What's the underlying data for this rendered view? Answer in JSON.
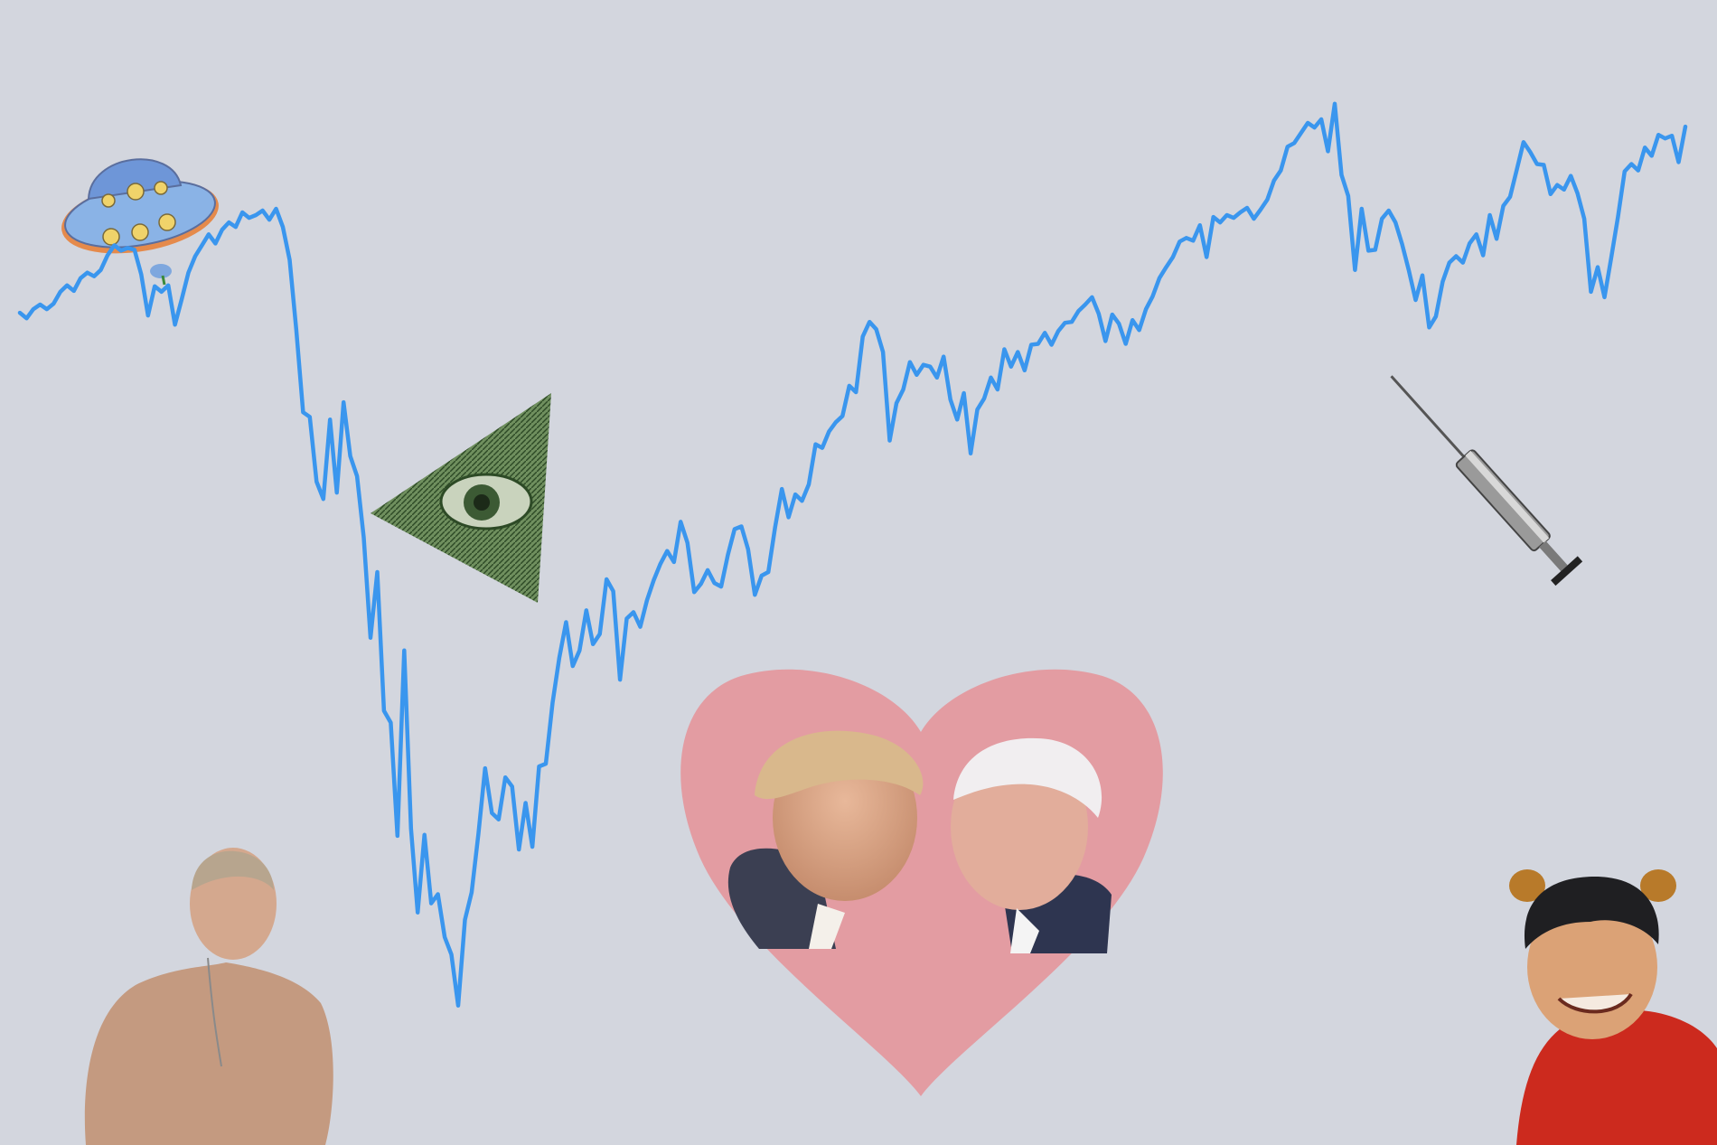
{
  "chart_data": {
    "type": "line",
    "title": "",
    "xlabel": "",
    "ylabel": "",
    "axes_shown": false,
    "grid": false,
    "legend": "none",
    "ylim": [
      0,
      100
    ],
    "series": [
      {
        "color": "#3a96ee",
        "values": [
          78.8,
          78.2,
          79.2,
          79.7,
          79.2,
          79.8,
          81.1,
          81.8,
          81.2,
          82.6,
          83.2,
          82.8,
          83.5,
          85.1,
          86.2,
          85.6,
          85.9,
          85.7,
          83.0,
          78.5,
          81.7,
          81.1,
          81.8,
          77.5,
          80.3,
          83.2,
          85.0,
          86.2,
          87.4,
          86.4,
          87.9,
          88.7,
          88.2,
          89.8,
          89.2,
          89.5,
          90.0,
          89.0,
          90.2,
          88.2,
          84.6,
          76.9,
          67.9,
          67.4,
          60.3,
          58.4,
          67.1,
          59.1,
          69.0,
          63.1,
          60.9,
          54.2,
          43.2,
          50.4,
          35.2,
          33.9,
          21.5,
          41.8,
          22.3,
          13.1,
          21.6,
          14.1,
          15.1,
          10.4,
          8.5,
          2.9,
          12.3,
          15.3,
          21.7,
          28.9,
          24.0,
          23.3,
          27.9,
          26.9,
          20.0,
          25.1,
          20.3,
          29.1,
          29.4,
          36.1,
          41.0,
          44.9,
          40.1,
          41.8,
          46.2,
          42.5,
          43.6,
          49.6,
          48.3,
          38.6,
          45.3,
          46.0,
          44.4,
          47.3,
          49.5,
          51.3,
          52.7,
          51.5,
          55.9,
          53.6,
          48.2,
          49.1,
          50.6,
          49.2,
          48.8,
          52.3,
          55.1,
          55.4,
          52.9,
          47.9,
          50.0,
          50.4,
          55.3,
          59.5,
          56.4,
          58.9,
          58.2,
          60.0,
          64.4,
          64.0,
          65.8,
          66.8,
          67.5,
          70.8,
          70.1,
          76.2,
          77.8,
          77.0,
          74.5,
          64.8,
          68.9,
          70.4,
          73.4,
          72.0,
          73.1,
          72.9,
          71.7,
          74.0,
          69.3,
          67.1,
          70.0,
          63.4,
          68.2,
          69.4,
          71.7,
          70.4,
          74.8,
          72.9,
          74.5,
          72.5,
          75.3,
          75.4,
          76.6,
          75.3,
          76.8,
          77.7,
          77.8,
          79.0,
          79.7,
          80.5,
          78.7,
          75.7,
          78.6,
          77.6,
          75.4,
          78.0,
          76.9,
          79.2,
          80.6,
          82.6,
          83.8,
          84.9,
          86.6,
          87.0,
          86.7,
          88.4,
          84.9,
          89.3,
          88.7,
          89.5,
          89.2,
          89.8,
          90.3,
          89.1,
          90.1,
          91.2,
          93.3,
          94.4,
          97.0,
          97.4,
          98.5,
          99.6,
          99.1,
          100.0,
          96.5,
          101.7,
          93.9,
          91.6,
          83.5,
          90.2,
          85.6,
          85.7,
          89.1,
          90.0,
          88.7,
          86.3,
          83.4,
          80.2,
          82.9,
          77.2,
          78.4,
          82.2,
          84.3,
          85.0,
          84.3,
          86.4,
          87.4,
          85.1,
          89.5,
          86.9,
          90.5,
          91.5,
          94.5,
          97.5,
          96.4,
          95.1,
          95.0,
          91.8,
          92.8,
          92.3,
          93.8,
          91.9,
          89.1,
          81.1,
          83.8,
          80.5,
          84.8,
          89.3,
          94.3,
          95.1,
          94.4,
          96.9,
          96.0,
          98.3,
          97.9,
          98.2,
          95.3,
          99.2
        ]
      }
    ]
  },
  "illustrations": {
    "ufo": "ufo-icon",
    "pyramid": "all-seeing-eye-pyramid",
    "syringe": "syringe-icon",
    "heart": "heart-shape",
    "portraits": [
      "putin-portrait",
      "trump-portrait",
      "biden-portrait",
      "xi-pooh-portrait"
    ]
  },
  "colors": {
    "background": "#d3d6de",
    "line": "#3a96ee",
    "heart": "#e39ca2"
  }
}
